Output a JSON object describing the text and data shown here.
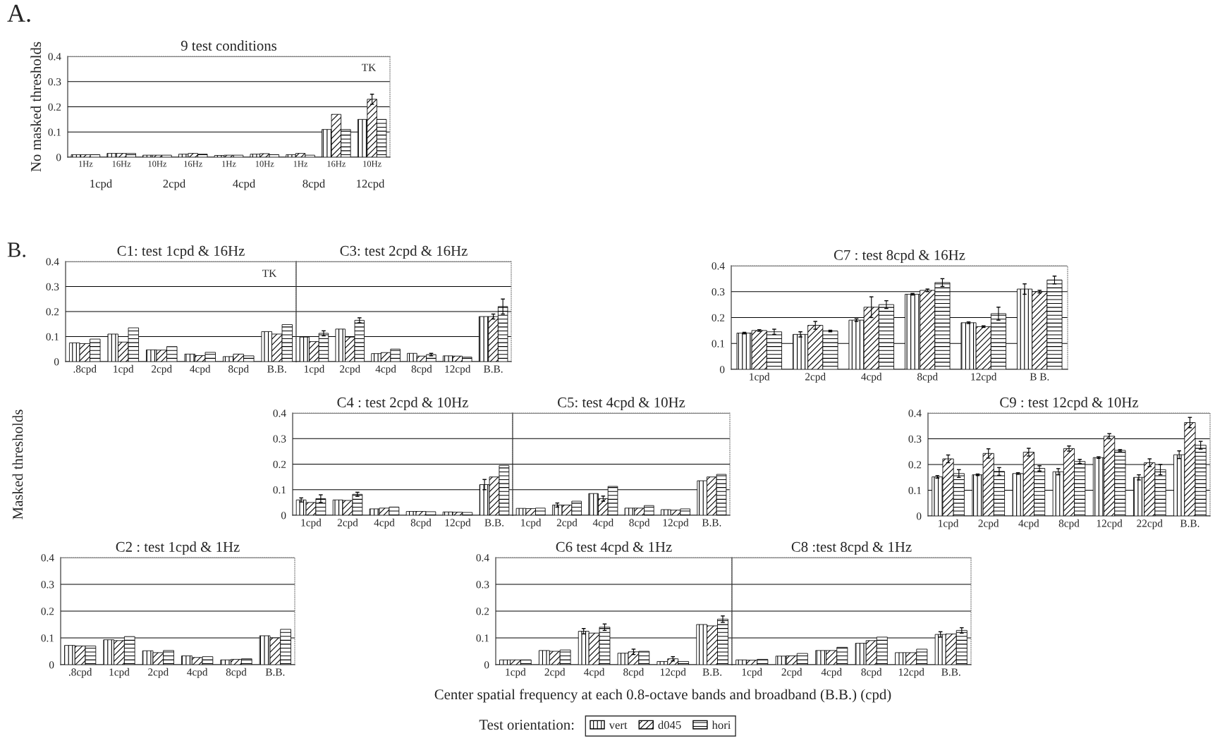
{
  "chart_data": [
    {
      "type": "bar",
      "title": "9 test conditions",
      "ylabel": "No masked thresholds",
      "categories": [
        "1Hz",
        "16Hz",
        "10Hz",
        "16Hz",
        "1Hz",
        "10Hz",
        "1Hz",
        "16Hz",
        "10Hz"
      ],
      "ylim": [
        0,
        0.4
      ],
      "yticks": [
        0,
        0.1,
        0.2,
        0.3,
        0.4
      ],
      "grid": "y",
      "annotations": [
        "A.",
        "TK",
        "1cpd",
        "2cpd",
        "4cpd",
        "8cpd",
        "12cpd"
      ],
      "series": [
        {
          "color": "#000000",
          "values": [
            0.01,
            0.015,
            0.008,
            0.012,
            0.007,
            0.012,
            0.01,
            0.11,
            0.15
          ]
        },
        {
          "color": "#000000",
          "values": [
            0.01,
            0.015,
            0.008,
            0.015,
            0.008,
            0.014,
            0.015,
            0.17,
            0.23
          ],
          "errors": [
            null,
            null,
            null,
            null,
            null,
            null,
            null,
            null,
            0.02
          ]
        },
        {
          "color": "#000000",
          "values": [
            0.01,
            0.015,
            0.008,
            0.012,
            0.008,
            0.01,
            0.008,
            0.11,
            0.15
          ]
        }
      ]
    },
    {
      "type": "bar",
      "title": "C1: test 1cpd & 16Hz",
      "ylabel": "Masked thresholds",
      "categories": [
        ".8cpd",
        "1cpd",
        "2cpd",
        "4cpd",
        "8cpd",
        "B.B."
      ],
      "ylim": [
        0,
        0.4
      ],
      "yticks": [
        0,
        0.1,
        0.2,
        0.3,
        0.4
      ],
      "grid": "y",
      "annotations": [
        "B.",
        "TK"
      ],
      "series": [
        {
          "color": "#000000",
          "values": [
            0.075,
            0.11,
            0.047,
            0.03,
            0.02,
            0.12
          ]
        },
        {
          "color": "#000000",
          "values": [
            0.072,
            0.078,
            0.046,
            0.024,
            0.03,
            0.11
          ]
        },
        {
          "color": "#000000",
          "values": [
            0.09,
            0.135,
            0.06,
            0.037,
            0.023,
            0.148
          ]
        }
      ]
    },
    {
      "type": "bar",
      "title": "C3: test 2cpd & 16Hz",
      "categories": [
        "1cpd",
        "2cpd",
        "4cpd",
        "8cpd",
        "12cpd",
        "B.B."
      ],
      "ylim": [
        0,
        0.4
      ],
      "yticks": [
        0,
        0.1,
        0.2,
        0.3,
        0.4
      ],
      "grid": "y",
      "tick_labels": "x",
      "series": [
        {
          "color": "#000000",
          "values": [
            0.098,
            0.13,
            0.032,
            0.033,
            0.023,
            0.18
          ]
        },
        {
          "color": "#000000",
          "values": [
            0.08,
            0.098,
            0.036,
            0.022,
            0.022,
            0.18
          ],
          "errors": [
            null,
            null,
            null,
            null,
            null,
            0.01
          ]
        },
        {
          "color": "#000000",
          "values": [
            0.113,
            0.165,
            0.05,
            0.028,
            0.018,
            0.22
          ],
          "errors": [
            0.01,
            0.01,
            null,
            0.005,
            null,
            0.03
          ]
        }
      ]
    },
    {
      "type": "bar",
      "title": "C7 : test 8cpd & 16Hz",
      "categories": [
        "1cpd",
        "2cpd",
        "4cpd",
        "8cpd",
        "12cpd",
        "B B."
      ],
      "ylim": [
        0,
        0.4
      ],
      "yticks": [
        0,
        0.1,
        0.2,
        0.3,
        0.4
      ],
      "grid": "y",
      "series": [
        {
          "color": "#000000",
          "values": [
            0.14,
            0.135,
            0.19,
            0.29,
            0.18,
            0.31
          ],
          "errors": [
            0.003,
            0.01,
            0.005,
            0.003,
            0.003,
            0.02
          ]
        },
        {
          "color": "#000000",
          "values": [
            0.15,
            0.17,
            0.24,
            0.305,
            0.165,
            0.3
          ],
          "errors": [
            0.003,
            0.015,
            0.04,
            0.005,
            0.003,
            0.005
          ]
        },
        {
          "color": "#000000",
          "values": [
            0.145,
            0.148,
            0.25,
            0.335,
            0.215,
            0.345
          ],
          "errors": [
            0.01,
            0.003,
            0.015,
            0.015,
            0.025,
            0.015
          ]
        }
      ]
    },
    {
      "type": "bar",
      "title": "C4 : test 2cpd & 10Hz",
      "categories": [
        "1cpd",
        "2cpd",
        "4cpd",
        "8cpd",
        "12cpd",
        "B.B."
      ],
      "ylim": [
        0,
        0.4
      ],
      "yticks": [
        0,
        0.1,
        0.2,
        0.3,
        0.4
      ],
      "grid": "y",
      "series": [
        {
          "color": "#000000",
          "values": [
            0.06,
            0.06,
            0.025,
            0.015,
            0.013,
            0.12
          ],
          "errors": [
            0.008,
            null,
            null,
            null,
            null,
            0.02
          ]
        },
        {
          "color": "#000000",
          "values": [
            0.05,
            0.058,
            0.028,
            0.015,
            0.012,
            0.15
          ]
        },
        {
          "color": "#000000",
          "values": [
            0.065,
            0.082,
            0.032,
            0.014,
            0.011,
            0.195
          ],
          "errors": [
            0.015,
            0.008,
            null,
            null,
            null,
            null
          ]
        }
      ]
    },
    {
      "type": "bar",
      "title": "C5: test 4cpd & 10Hz",
      "categories": [
        "1cpd",
        "2cpd",
        "4cpd",
        "8cpd",
        "12cpd",
        "B.B."
      ],
      "ylim": [
        0,
        0.4
      ],
      "yticks": [
        0,
        0.1,
        0.2,
        0.3,
        0.4
      ],
      "grid": "y",
      "tick_labels": "x",
      "series": [
        {
          "color": "#000000",
          "values": [
            0.027,
            0.04,
            0.085,
            0.028,
            0.022,
            0.135
          ],
          "errors": [
            null,
            0.008,
            null,
            null,
            null,
            null
          ]
        },
        {
          "color": "#000000",
          "values": [
            0.026,
            0.04,
            0.065,
            0.028,
            0.02,
            0.15
          ],
          "errors": [
            null,
            null,
            0.01,
            null,
            null,
            null
          ]
        },
        {
          "color": "#000000",
          "values": [
            0.028,
            0.055,
            0.113,
            0.038,
            0.025,
            0.16
          ]
        }
      ]
    },
    {
      "type": "bar",
      "title": "C9 : test 12cpd & 10Hz",
      "categories": [
        "1cpd",
        "2cpd",
        "4cpd",
        "8cpd",
        "12cpd",
        "22cpd",
        "B.B."
      ],
      "ylim": [
        0,
        0.4
      ],
      "yticks": [
        0,
        0.1,
        0.2,
        0.3,
        0.4
      ],
      "grid": "y",
      "series": [
        {
          "color": "#000000",
          "values": [
            0.152,
            0.16,
            0.165,
            0.172,
            0.227,
            0.15,
            0.238
          ],
          "errors": [
            0.005,
            0.003,
            0.003,
            0.012,
            0.003,
            0.01,
            0.015
          ]
        },
        {
          "color": "#000000",
          "values": [
            0.222,
            0.243,
            0.248,
            0.262,
            0.31,
            0.207,
            0.363
          ],
          "errors": [
            0.015,
            0.018,
            0.015,
            0.01,
            0.01,
            0.015,
            0.02
          ]
        },
        {
          "color": "#000000",
          "values": [
            0.165,
            0.173,
            0.185,
            0.212,
            0.255,
            0.18,
            0.275
          ],
          "errors": [
            0.015,
            0.015,
            0.01,
            0.008,
            0.003,
            0.02,
            0.015
          ]
        }
      ]
    },
    {
      "type": "bar",
      "title": "C2 : test 1cpd & 1Hz",
      "categories": [
        ".8cpd",
        "1cpd",
        "2cpd",
        "4cpd",
        "8cpd",
        "B.B."
      ],
      "ylim": [
        0,
        0.4
      ],
      "yticks": [
        0,
        0.1,
        0.2,
        0.3,
        0.4
      ],
      "grid": "y",
      "series": [
        {
          "color": "#000000",
          "values": [
            0.072,
            0.093,
            0.052,
            0.033,
            0.018,
            0.108
          ]
        },
        {
          "color": "#000000",
          "values": [
            0.07,
            0.09,
            0.045,
            0.027,
            0.02,
            0.1
          ]
        },
        {
          "color": "#000000",
          "values": [
            0.07,
            0.105,
            0.053,
            0.03,
            0.022,
            0.132
          ]
        }
      ]
    },
    {
      "type": "bar",
      "title": "C6 test 4cpd & 1Hz",
      "xlabel": "Center spatial frequency at each 0.8-octave bands and broadband (B.B.) (cpd)",
      "categories": [
        "1cpd",
        "2cpd",
        "4cpd",
        "8cpd",
        "12cpd",
        "B.B."
      ],
      "ylim": [
        0,
        0.4
      ],
      "yticks": [
        0,
        0.1,
        0.2,
        0.3,
        0.4
      ],
      "grid": "y",
      "series": [
        {
          "color": "#000000",
          "values": [
            0.018,
            0.053,
            0.125,
            0.043,
            0.012,
            0.15
          ],
          "errors": [
            null,
            null,
            0.01,
            null,
            null,
            null
          ]
        },
        {
          "color": "#000000",
          "values": [
            0.018,
            0.05,
            0.118,
            0.048,
            0.022,
            0.145
          ],
          "errors": [
            null,
            null,
            null,
            0.01,
            0.008,
            null
          ]
        },
        {
          "color": "#000000",
          "values": [
            0.018,
            0.055,
            0.14,
            0.05,
            0.012,
            0.17
          ],
          "errors": [
            null,
            null,
            0.012,
            null,
            null,
            0.012
          ]
        }
      ]
    },
    {
      "type": "bar",
      "title": "C8 :test 8cpd & 1Hz",
      "categories": [
        "1cpd",
        "2cpd",
        "4cpd",
        "8cpd",
        "12cpd",
        "B.B."
      ],
      "ylim": [
        0,
        0.4
      ],
      "yticks": [
        0,
        0.1,
        0.2,
        0.3,
        0.4
      ],
      "grid": "y",
      "tick_labels": "x",
      "legend": "bottom",
      "legend_title": "Test orientation:",
      "series": [
        {
          "name": "vert",
          "color": "#000000",
          "values": [
            0.018,
            0.032,
            0.053,
            0.08,
            0.045,
            0.113
          ],
          "errors": [
            null,
            null,
            null,
            null,
            null,
            0.01
          ]
        },
        {
          "name": "d045",
          "color": "#000000",
          "values": [
            0.017,
            0.033,
            0.053,
            0.09,
            0.045,
            0.115
          ]
        },
        {
          "name": "hori",
          "color": "#000000",
          "values": [
            0.02,
            0.042,
            0.065,
            0.103,
            0.058,
            0.128
          ],
          "errors": [
            null,
            null,
            null,
            null,
            null,
            0.01
          ]
        }
      ]
    }
  ]
}
